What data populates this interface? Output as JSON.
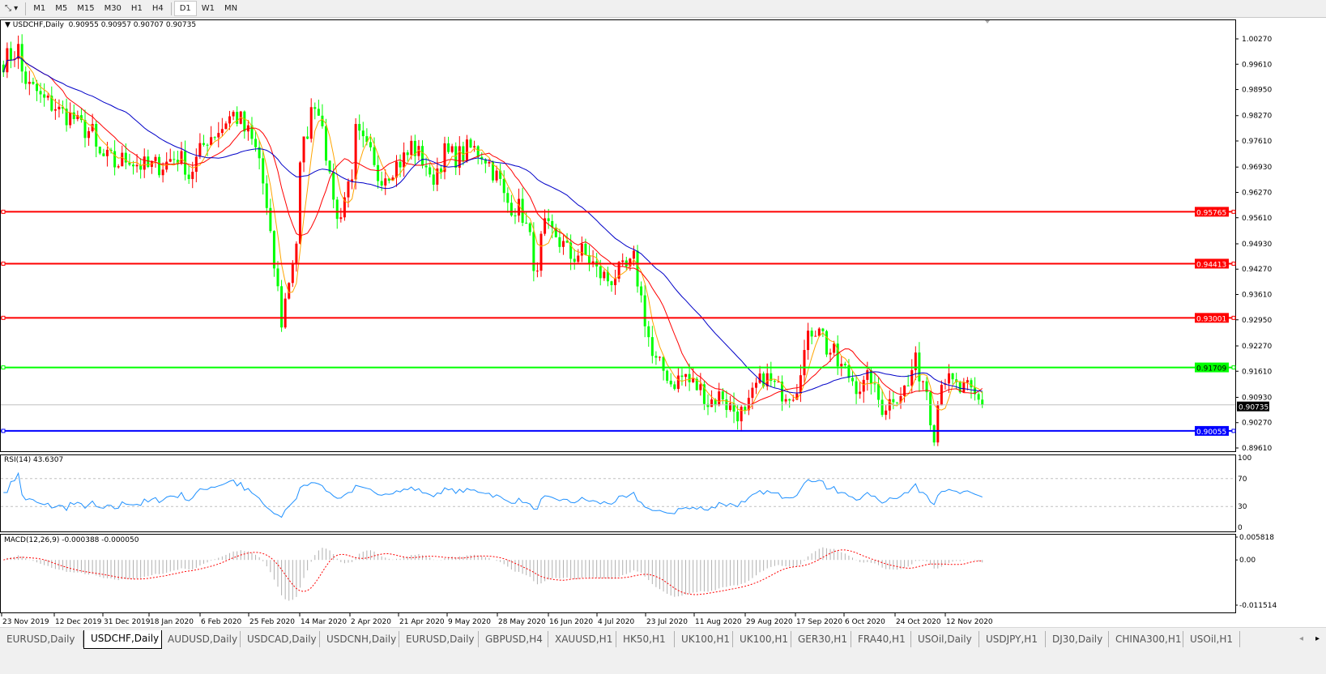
{
  "toolbar": {
    "timeframes": [
      "M1",
      "M5",
      "M15",
      "M30",
      "H1",
      "H4",
      "D1",
      "W1",
      "MN"
    ],
    "active_timeframe": "D1"
  },
  "main": {
    "header": "USDCHF,Daily",
    "ohlc": "0.90955 0.90957 0.90707 0.90735",
    "price_ticks": [
      "1.00270",
      "0.99610",
      "0.98950",
      "0.98270",
      "0.97610",
      "0.96930",
      "0.96270",
      "0.95610",
      "0.94930",
      "0.94270",
      "0.93610",
      "0.92950",
      "0.92270",
      "0.91610",
      "0.90930",
      "0.90270",
      "0.89610"
    ],
    "current_price": "0.90735",
    "hlines": [
      {
        "price": "0.95765",
        "color": "#ff0000"
      },
      {
        "price": "0.94413",
        "color": "#ff0000"
      },
      {
        "price": "0.93001",
        "color": "#ff0000"
      },
      {
        "price": "0.91709",
        "color": "#00ff00"
      },
      {
        "price": "0.90055",
        "color": "#0000ff"
      }
    ],
    "colors": {
      "up_candle": "#ff0000",
      "down_candle": "#00ff00",
      "ma_fast": "#ffa500",
      "ma_mid": "#ff0000",
      "ma_slow": "#0000c8"
    }
  },
  "rsi": {
    "header": "RSI(14) 43.6307",
    "ticks": [
      "100",
      "70",
      "30",
      "0"
    ],
    "color": "#1e90ff"
  },
  "macd": {
    "header": "MACD(12,26,9) -0.000388 -0.000050",
    "ticks": [
      "0.005818",
      "0.00",
      "-0.011514"
    ]
  },
  "time_axis": [
    "23 Nov 2019",
    "12 Dec 2019",
    "31 Dec 2019",
    "18 Jan 2020",
    "6 Feb 2020",
    "25 Feb 2020",
    "14 Mar 2020",
    "2 Apr 2020",
    "21 Apr 2020",
    "9 May 2020",
    "28 May 2020",
    "16 Jun 2020",
    "4 Jul 2020",
    "23 Jul 2020",
    "11 Aug 2020",
    "29 Aug 2020",
    "17 Sep 2020",
    "6 Oct 2020",
    "24 Oct 2020",
    "12 Nov 2020"
  ],
  "chart_data": {
    "type": "candlestick",
    "symbol": "USDCHF",
    "timeframe": "Daily",
    "ylim": [
      0.8961,
      1.0027
    ],
    "approx_closes": [
      [
        "2019-11-25",
        0.997
      ],
      [
        "2019-11-29",
        1.0
      ],
      [
        "2019-12-04",
        0.99
      ],
      [
        "2019-12-11",
        0.986
      ],
      [
        "2019-12-20",
        0.982
      ],
      [
        "2019-12-27",
        0.978
      ],
      [
        "2019-12-31",
        0.972
      ],
      [
        "2020-01-06",
        0.97
      ],
      [
        "2020-01-10",
        0.972
      ],
      [
        "2020-01-17",
        0.969
      ],
      [
        "2020-01-23",
        0.97
      ],
      [
        "2020-01-29",
        0.972
      ],
      [
        "2020-02-03",
        0.967
      ],
      [
        "2020-02-07",
        0.975
      ],
      [
        "2020-02-13",
        0.979
      ],
      [
        "2020-02-19",
        0.983
      ],
      [
        "2020-02-25",
        0.978
      ],
      [
        "2020-03-02",
        0.965
      ],
      [
        "2020-03-04",
        0.95
      ],
      [
        "2020-03-06",
        0.937
      ],
      [
        "2020-03-09",
        0.929
      ],
      [
        "2020-03-11",
        0.94
      ],
      [
        "2020-03-13",
        0.95
      ],
      [
        "2020-03-17",
        0.975
      ],
      [
        "2020-03-20",
        0.987
      ],
      [
        "2020-03-24",
        0.982
      ],
      [
        "2020-03-26",
        0.965
      ],
      [
        "2020-03-30",
        0.955
      ],
      [
        "2020-04-02",
        0.965
      ],
      [
        "2020-04-06",
        0.978
      ],
      [
        "2020-04-10",
        0.972
      ],
      [
        "2020-04-14",
        0.967
      ],
      [
        "2020-04-21",
        0.97
      ],
      [
        "2020-04-27",
        0.975
      ],
      [
        "2020-05-01",
        0.97
      ],
      [
        "2020-05-04",
        0.965
      ],
      [
        "2020-05-08",
        0.973
      ],
      [
        "2020-05-13",
        0.972
      ],
      [
        "2020-05-19",
        0.974
      ],
      [
        "2020-05-25",
        0.972
      ],
      [
        "2020-05-29",
        0.965
      ],
      [
        "2020-06-02",
        0.96
      ],
      [
        "2020-06-08",
        0.957
      ],
      [
        "2020-06-10",
        0.95
      ],
      [
        "2020-06-12",
        0.94
      ],
      [
        "2020-06-16",
        0.953
      ],
      [
        "2020-06-22",
        0.95
      ],
      [
        "2020-06-25",
        0.946
      ],
      [
        "2020-06-30",
        0.947
      ],
      [
        "2020-07-03",
        0.944
      ],
      [
        "2020-07-09",
        0.94
      ],
      [
        "2020-07-15",
        0.942
      ],
      [
        "2020-07-20",
        0.945
      ],
      [
        "2020-07-22",
        0.935
      ],
      [
        "2020-07-24",
        0.925
      ],
      [
        "2020-07-28",
        0.918
      ],
      [
        "2020-08-03",
        0.913
      ],
      [
        "2020-08-07",
        0.915
      ],
      [
        "2020-08-12",
        0.912
      ],
      [
        "2020-08-17",
        0.908
      ],
      [
        "2020-08-21",
        0.91
      ],
      [
        "2020-08-26",
        0.906
      ],
      [
        "2020-08-31",
        0.904
      ],
      [
        "2020-09-03",
        0.912
      ],
      [
        "2020-09-07",
        0.915
      ],
      [
        "2020-09-11",
        0.911
      ],
      [
        "2020-09-17",
        0.911
      ],
      [
        "2020-09-21",
        0.918
      ],
      [
        "2020-09-24",
        0.927
      ],
      [
        "2020-09-28",
        0.929
      ],
      [
        "2020-09-30",
        0.922
      ],
      [
        "2020-10-06",
        0.917
      ],
      [
        "2020-10-09",
        0.914
      ],
      [
        "2020-10-14",
        0.912
      ],
      [
        "2020-10-16",
        0.915
      ],
      [
        "2020-10-21",
        0.907
      ],
      [
        "2020-10-26",
        0.91
      ],
      [
        "2020-10-30",
        0.912
      ],
      [
        "2020-11-03",
        0.918
      ],
      [
        "2020-11-05",
        0.914
      ],
      [
        "2020-11-09",
        0.905
      ],
      [
        "2020-11-10",
        0.9005
      ],
      [
        "2020-11-12",
        0.915
      ],
      [
        "2020-11-16",
        0.913
      ],
      [
        "2020-11-19",
        0.911
      ],
      [
        "2020-11-23",
        0.911
      ],
      [
        "2020-11-27",
        0.90735
      ]
    ]
  },
  "tabs": [
    "EURUSD,Daily",
    "USDCHF,Daily",
    "AUDUSD,Daily",
    "USDCAD,Daily",
    "USDCNH,Daily",
    "EURUSD,Daily",
    "GBPUSD,H4",
    "XAUUSD,H1",
    "HK50,H1",
    "UK100,H1",
    "UK100,H1",
    "GER30,H1",
    "FRA40,H1",
    "USOil,Daily",
    "USDJPY,H1",
    "DJ30,Daily",
    "CHINA300,H1",
    "USOil,H1"
  ],
  "active_tab": 1
}
